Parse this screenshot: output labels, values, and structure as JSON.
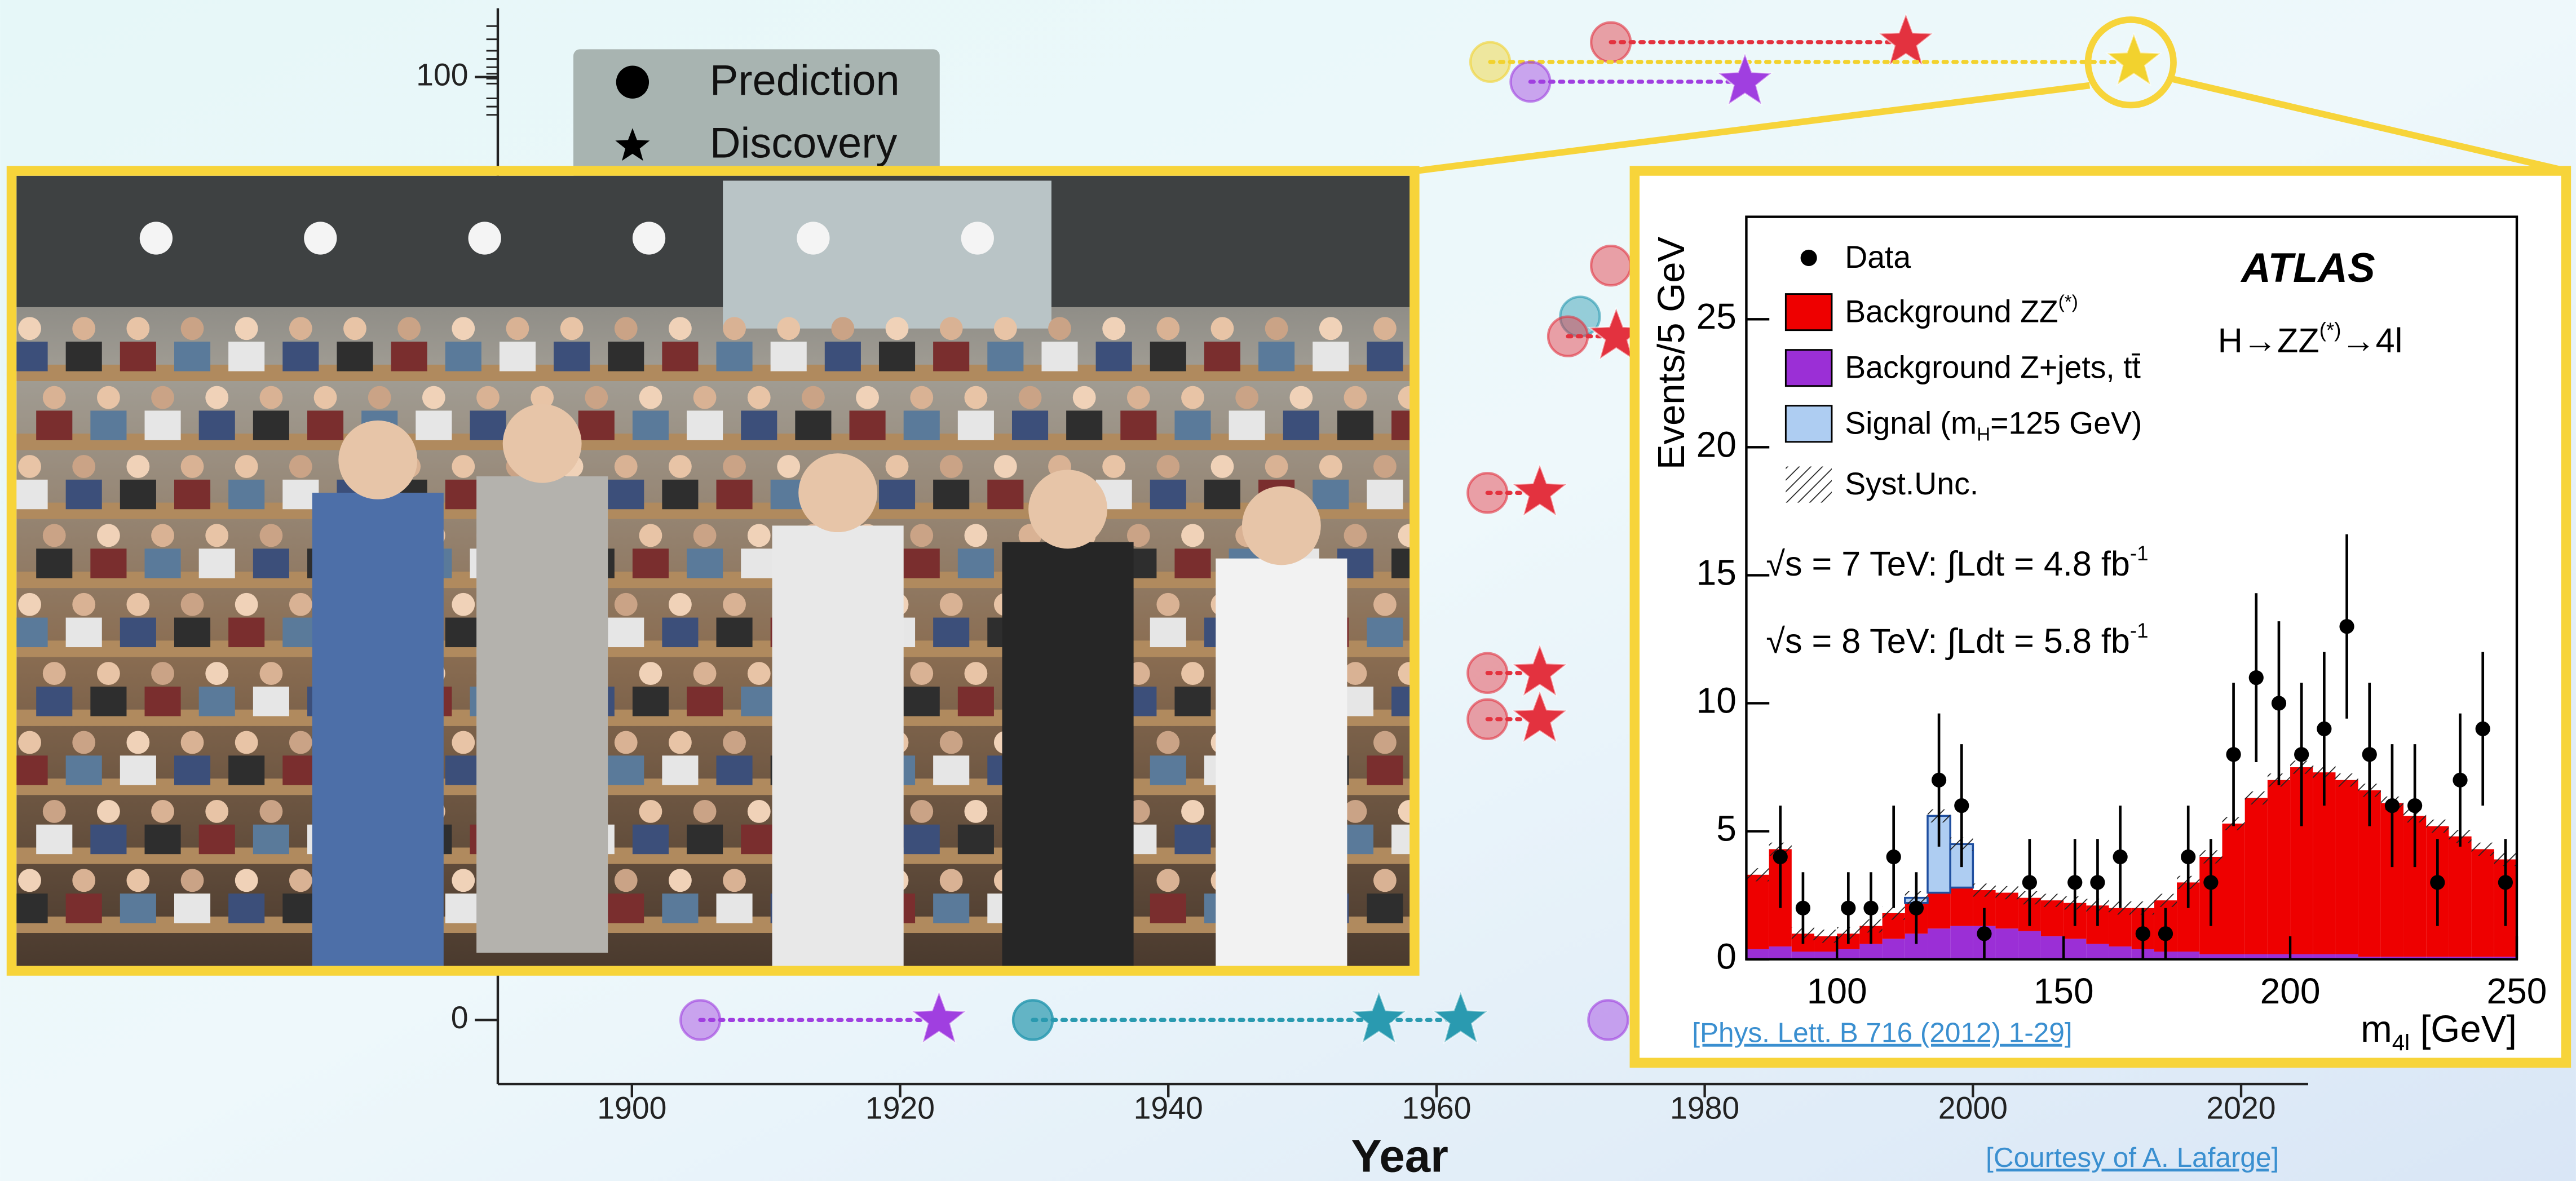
{
  "chart_data": [
    {
      "type": "timeline-scatter",
      "x_label": "Year",
      "xlim": [
        1890,
        2025
      ],
      "xticks": [
        1900,
        1920,
        1940,
        1960,
        1980,
        2000,
        2020
      ],
      "ylim": [
        -6.8,
        107.3
      ],
      "yticks": [
        0,
        100
      ],
      "legend": [
        "Prediction",
        "Discovery"
      ],
      "pairs": [
        {
          "color": "#e3323f",
          "prediction": 1973,
          "discovery": 1995,
          "value": 103.7
        },
        {
          "color": "#f2d22e",
          "prediction": 1964,
          "discovery": 2012,
          "value": 101.6
        },
        {
          "color": "#a03fe0",
          "prediction": 1967,
          "discovery": 1983,
          "value": 99.5
        },
        {
          "color": "#e3323f",
          "prediction": 1973,
          "discovery": null,
          "value": 80
        },
        {
          "color": "#2a9ab0",
          "prediction": 1970.7,
          "discovery": null,
          "value": 74.6
        },
        {
          "color": "#e3323f",
          "prediction": 1969.8,
          "discovery": 1973.4,
          "value": 72.5
        },
        {
          "color": "#e3323f",
          "prediction": 1963.8,
          "discovery": 1967.7,
          "value": 55.9
        },
        {
          "color": "#e3323f",
          "prediction": 1963.8,
          "discovery": 1967.7,
          "value": 36.8
        },
        {
          "color": "#e3323f",
          "prediction": 1963.8,
          "discovery": 1967.7,
          "value": 31.9
        },
        {
          "color": "#a03fe0",
          "prediction": 1905.1,
          "discovery": 1922.9,
          "value": 0
        },
        {
          "color": "#2a9ab0",
          "prediction": 1929.9,
          "discovery": 1955.7,
          "value": 0
        },
        {
          "color": "#2a9ab0",
          "prediction": 1929.9,
          "discovery": 1961.8,
          "value": 0
        },
        {
          "color": "#a03fe0",
          "prediction": 1972.8,
          "discovery": null,
          "value": 0
        }
      ],
      "source": "[Courtesy of A. Lafarge]"
    },
    {
      "type": "histogram",
      "y_label": "Events/5 GeV",
      "x_label": [
        {
          "t": "m"
        },
        {
          "t": "4l",
          "s": "sub"
        },
        {
          "t": " [GeV]"
        }
      ],
      "xlim": [
        80,
        250
      ],
      "xticks": [
        100,
        150,
        200,
        250
      ],
      "ylim": [
        0,
        29
      ],
      "yticks": [
        0,
        5,
        10,
        15,
        20,
        25
      ],
      "bins": [
        80,
        85,
        90,
        95,
        100,
        105,
        110,
        115,
        120,
        125,
        130,
        135,
        140,
        145,
        150,
        155,
        160,
        165,
        170,
        175,
        180,
        185,
        190,
        195,
        200,
        205,
        210,
        215,
        220,
        225,
        230,
        235,
        240,
        245,
        250
      ],
      "series": [
        {
          "color": "#9b2fd6",
          "label": [
            {
              "t": "Background Z+jets, tt̄"
            }
          ],
          "values": [
            0.4,
            0.5,
            0.3,
            0.3,
            0.4,
            0.6,
            0.8,
            1.0,
            1.2,
            1.3,
            1.3,
            1.2,
            1.1,
            0.9,
            0.8,
            0.6,
            0.5,
            0.4,
            0.3,
            0.3,
            0.2,
            0.2,
            0.2,
            0.2,
            0.2,
            0.2,
            0.2,
            0.1,
            0.1,
            0.1,
            0.1,
            0.1,
            0.1,
            0.1
          ]
        },
        {
          "color": "#ee0000",
          "label": [
            {
              "t": "Background ZZ"
            },
            {
              "t": "(*)",
              "s": "sup"
            }
          ],
          "values": [
            2.9,
            3.8,
            0.7,
            0.6,
            0.6,
            0.7,
            1.0,
            1.2,
            1.4,
            1.5,
            1.4,
            1.4,
            1.3,
            1.4,
            1.4,
            1.5,
            1.5,
            1.6,
            2.0,
            2.7,
            3.8,
            5.1,
            6.1,
            6.8,
            7.3,
            7.1,
            6.8,
            6.5,
            6.0,
            5.5,
            5.1,
            4.7,
            4.2,
            3.8
          ]
        },
        {
          "color": "#aecdf2",
          "label": [
            {
              "t": "Signal (m"
            },
            {
              "t": "H",
              "s": "sub"
            },
            {
              "t": "=125 GeV)"
            }
          ],
          "values": [
            0,
            0,
            0,
            0,
            0,
            0,
            0,
            0.2,
            3.0,
            1.7,
            0,
            0,
            0,
            0,
            0,
            0,
            0,
            0,
            0,
            0,
            0,
            0,
            0,
            0,
            0,
            0,
            0,
            0,
            0,
            0,
            0,
            0,
            0,
            0
          ]
        }
      ],
      "data_label": "Data",
      "syst_label": "Syst.Unc.",
      "data_x": [
        87.5,
        92.5,
        102.5,
        107.5,
        112.5,
        117.5,
        122.5,
        127.5,
        132.5,
        142.5,
        152.5,
        157.5,
        162.5,
        167.5,
        172.5,
        177.5,
        182.5,
        187.5,
        192.5,
        197.5,
        202.5,
        207.5,
        212.5,
        217.5,
        222.5,
        227.5,
        232.5,
        237.5,
        242.5,
        247.5
      ],
      "data": [
        4,
        2,
        2,
        2,
        4,
        2,
        7,
        6,
        1,
        3,
        3,
        3,
        4,
        1,
        1,
        4,
        3,
        8,
        11,
        10,
        8,
        9,
        13,
        8,
        6,
        6,
        3,
        7,
        9,
        3
      ],
      "errors": [
        2,
        1.4,
        1.4,
        1.4,
        2,
        1.4,
        2.6,
        2.4,
        1,
        1.7,
        1.7,
        1.7,
        2,
        1,
        1,
        2,
        1.7,
        2.8,
        3.3,
        3.2,
        2.8,
        3,
        3.6,
        2.8,
        2.4,
        2.4,
        1.7,
        2.6,
        3,
        1.7
      ],
      "experiment": "ATLAS",
      "process": [
        {
          "t": "H→ZZ"
        },
        {
          "t": "(*)",
          "s": "sup"
        },
        {
          "t": "→4l"
        }
      ],
      "energy_lines": [
        [
          {
            "t": "√s = 7 TeV: ∫Ldt = 4.8 fb"
          },
          {
            "t": "-1",
            "s": "sup"
          }
        ],
        [
          {
            "t": "√s = 8 TeV: ∫Ldt = 5.8 fb"
          },
          {
            "t": "-1",
            "s": "sup"
          }
        ]
      ],
      "source": "[Phys. Lett. B 716 (2012) 1-29]"
    }
  ]
}
